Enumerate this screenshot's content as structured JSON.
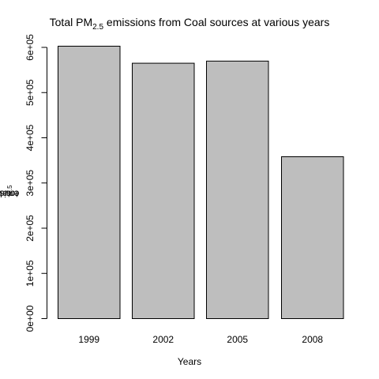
{
  "chart_data": {
    "type": "bar",
    "title_main": "Total PM",
    "title_sub": "2.5",
    "title_rest": " emissions from Coal sources at various years",
    "xlabel": "Years",
    "ylabel_main": "total PM",
    "ylabel_sub": "2.5",
    "ylabel_rest": " emission",
    "categories": [
      "1999",
      "2002",
      "2005",
      "2008"
    ],
    "values": [
      602624,
      564936,
      569655,
      358084
    ],
    "ylim": [
      0,
      600000
    ],
    "yticks": [
      0,
      100000,
      200000,
      300000,
      400000,
      500000,
      600000
    ],
    "ytick_labels": [
      "0e+00",
      "1e+05",
      "2e+05",
      "3e+05",
      "4e+05",
      "5e+05",
      "6e+05"
    ],
    "grid": false,
    "bar_fill": "#bebebe",
    "bar_stroke": "#000000"
  }
}
